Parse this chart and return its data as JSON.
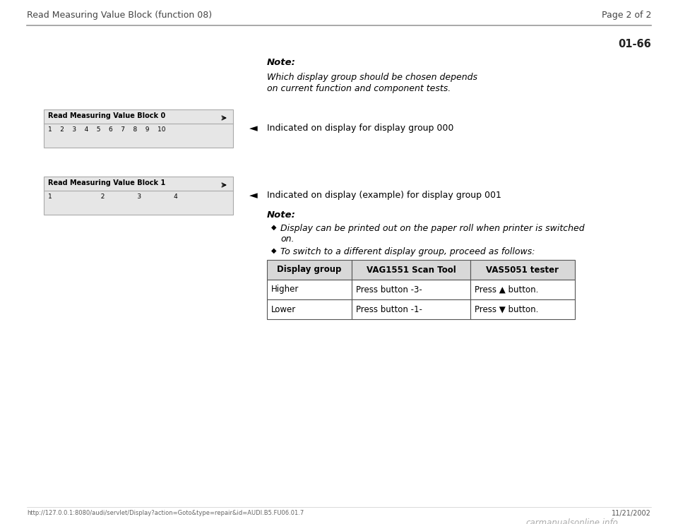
{
  "bg_color": "#ffffff",
  "header_title": "Read Measuring Value Block (function 08)",
  "page_label": "Page 2 of 2",
  "page_ref": "01-66",
  "date": "11/21/2002",
  "url": "http://127.0.0.1:8080/audi/servlet/Display?action=Goto&type=repair&id=AUDI.B5.FU06.01.7",
  "watermark": "carmanualsonline.info",
  "note_label": "Note:",
  "note_text_line1": "Which display group should be chosen depends",
  "note_text_line2": "on current function and component tests.",
  "arrow_label1": "Indicated on display for display group 000",
  "arrow_label2": "Indicated on display (example) for display group 001",
  "note2_label": "Note:",
  "bullet1": "Display can be printed out on the paper roll when printer is switched",
  "bullet1b": "on.",
  "bullet2": "To switch to a different display group, proceed as follows:",
  "display_box1_title": "Read Measuring Value Block 0",
  "display_box1_nums": "1    2    3    4    5    6    7    8    9    10",
  "display_box2_title": "Read Measuring Value Block 1",
  "display_box2_nums": "1                        2                3                4",
  "table_headers": [
    "Display group",
    "VAG1551 Scan Tool",
    "VAS5051 tester"
  ],
  "table_row1": [
    "Higher",
    "Press button -3-",
    "Press ▲ button."
  ],
  "table_row2": [
    "Lower",
    "Press button -1-",
    "Press ▼ button."
  ]
}
